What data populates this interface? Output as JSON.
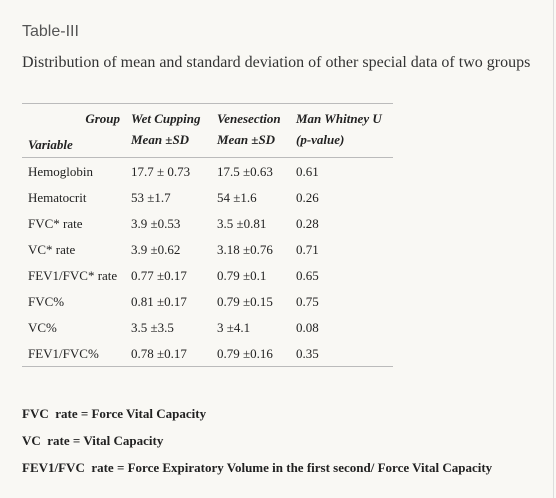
{
  "header": {
    "title": "Table-III",
    "subtitle": "Distribution of mean and standard deviation of other special data of two groups"
  },
  "table": {
    "header_top": [
      "Group",
      "Wet Cupping",
      "Venesection",
      "Man Whitney U"
    ],
    "header_bottom": [
      "Variable",
      "Mean ±SD",
      "Mean ±SD",
      "(p-value)"
    ],
    "rows": [
      [
        "Hemoglobin",
        "17.7 ± 0.73",
        "17.5 ±0.63",
        "0.61"
      ],
      [
        "Hematocrit",
        "53 ±1.7",
        "54 ±1.6",
        "0.26"
      ],
      [
        "FVC* rate",
        "3.9 ±0.53",
        "3.5 ±0.81",
        "0.28"
      ],
      [
        "VC* rate",
        "3.9 ±0.62",
        "3.18 ±0.76",
        "0.71"
      ],
      [
        "FEV1/FVC* rate",
        "0.77 ±0.17",
        "0.79 ±0.1",
        "0.65"
      ],
      [
        "FVC%",
        "0.81 ±0.17",
        "0.79 ±0.15",
        "0.75"
      ],
      [
        "VC%",
        "3.5 ±3.5",
        "3 ±4.1",
        "0.08"
      ],
      [
        "FEV1/FVC%",
        "0.78 ±0.17",
        "0.79 ±0.16",
        "0.35"
      ]
    ]
  },
  "footnotes": [
    "FVC  rate = Force Vital Capacity",
    "VC  rate = Vital Capacity",
    "FEV1/FVC  rate = Force Expiratory Volume in the first second/ Force Vital Capacity"
  ]
}
